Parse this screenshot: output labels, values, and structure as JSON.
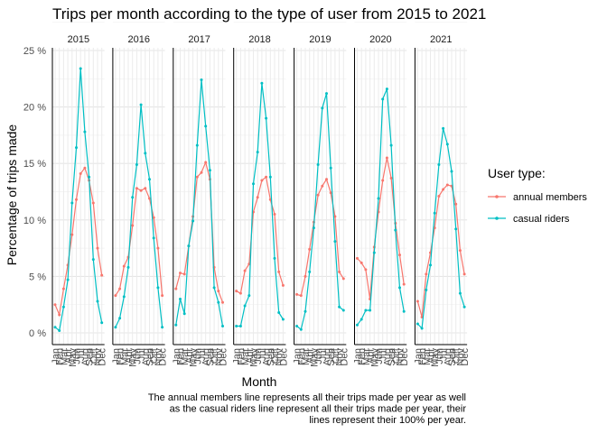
{
  "chart_data": {
    "type": "line",
    "title": "Trips per month according to the type of user from 2015 to 2021",
    "xlabel": "Month",
    "ylabel": "Percentage of trips made",
    "ylim": [
      0,
      25
    ],
    "yticks": [
      "0 %",
      "5 %",
      "10 %",
      "15 %",
      "20 %",
      "25 %"
    ],
    "ytick_values": [
      0,
      5,
      10,
      15,
      20,
      25
    ],
    "categories": [
      "Jan",
      "Feb",
      "Mar",
      "Apr",
      "May",
      "Jun",
      "Jul",
      "Aug",
      "Sep",
      "Oct",
      "Nov",
      "Dec"
    ],
    "facets": [
      "2015",
      "2016",
      "2017",
      "2018",
      "2019",
      "2020",
      "2021"
    ],
    "legend_title": "User type:",
    "legend_position": "right",
    "grid": true,
    "series": [
      {
        "name": "annual members",
        "color": "#f8766d",
        "values": {
          "2015": [
            2.5,
            1.6,
            3.9,
            6.0,
            8.7,
            11.8,
            14.1,
            14.6,
            13.5,
            11.5,
            7.5,
            5.1
          ],
          "2016": [
            3.3,
            3.9,
            5.9,
            6.7,
            9.5,
            12.8,
            12.6,
            12.8,
            11.9,
            10.2,
            7.5,
            3.3
          ],
          "2017": [
            3.9,
            5.3,
            5.2,
            7.7,
            10.3,
            13.8,
            14.2,
            15.1,
            13.6,
            5.8,
            3.7,
            2.7
          ],
          "2018": [
            3.7,
            3.5,
            5.5,
            6.1,
            10.7,
            12.0,
            13.5,
            13.8,
            11.8,
            10.5,
            5.4,
            4.2
          ],
          "2019": [
            3.4,
            3.3,
            5.0,
            7.4,
            9.8,
            12.2,
            13.0,
            13.6,
            12.4,
            10.3,
            5.4,
            4.8
          ],
          "2020": [
            6.6,
            6.2,
            5.6,
            3.0,
            7.6,
            10.7,
            13.5,
            15.5,
            13.7,
            9.7,
            6.9,
            4.3
          ],
          "2021": [
            2.8,
            1.4,
            5.2,
            7.1,
            9.3,
            12.1,
            12.7,
            13.1,
            13.0,
            11.4,
            7.3,
            5.2
          ]
        }
      },
      {
        "name": "casual riders",
        "color": "#00bfc4",
        "values": {
          "2015": [
            0.5,
            0.2,
            2.3,
            4.7,
            11.5,
            16.4,
            23.4,
            17.8,
            13.8,
            6.5,
            2.8,
            0.9
          ],
          "2016": [
            0.5,
            1.3,
            3.2,
            5.8,
            12.0,
            14.9,
            20.2,
            15.9,
            13.6,
            8.4,
            4.0,
            0.5
          ],
          "2017": [
            0.7,
            3.0,
            1.7,
            7.7,
            9.9,
            16.6,
            22.4,
            18.3,
            14.4,
            4.0,
            2.7,
            0.6
          ],
          "2018": [
            0.6,
            0.6,
            2.4,
            3.3,
            13.2,
            16.0,
            22.1,
            19.0,
            13.8,
            6.6,
            1.8,
            1.2
          ],
          "2019": [
            0.6,
            0.3,
            1.9,
            5.4,
            9.3,
            14.9,
            19.9,
            21.2,
            14.6,
            8.1,
            2.3,
            2.0
          ],
          "2020": [
            0.7,
            1.2,
            2.0,
            2.0,
            7.1,
            11.9,
            20.7,
            21.6,
            16.6,
            9.1,
            4.0,
            1.9
          ],
          "2021": [
            0.8,
            0.4,
            3.8,
            6.0,
            10.6,
            14.9,
            18.1,
            16.7,
            14.3,
            9.2,
            3.5,
            2.3
          ]
        }
      }
    ]
  },
  "caption": [
    "The annual members line represents all their trips made per year as well",
    "as the casual riders line represent all their trips made per year, their",
    "lines represent their 100% per year."
  ]
}
